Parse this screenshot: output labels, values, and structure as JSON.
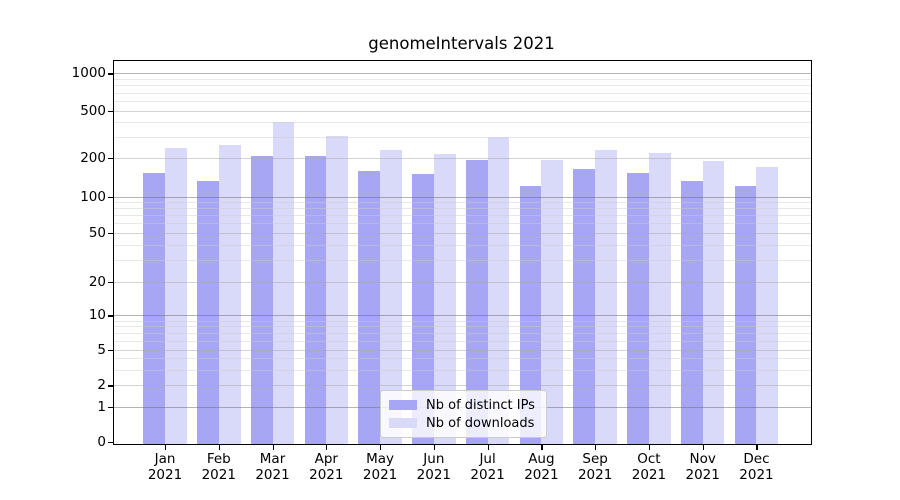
{
  "chart_data": {
    "type": "bar",
    "title": "genomeIntervals 2021",
    "categories": [
      "Jan 2021",
      "Feb 2021",
      "Mar 2021",
      "Apr 2021",
      "May 2021",
      "Jun 2021",
      "Jul 2021",
      "Aug 2021",
      "Sep 2021",
      "Oct 2021",
      "Nov 2021",
      "Dec 2021"
    ],
    "series": [
      {
        "name": "Nb of distinct IPs",
        "color": "#a6a6f4",
        "values": [
          158,
          137,
          214,
          214,
          163,
          155,
          200,
          125,
          170,
          158,
          137,
          125
        ]
      },
      {
        "name": "Nb of downloads",
        "color": "#d9d9f9",
        "values": [
          250,
          265,
          420,
          320,
          240,
          222,
          310,
          198,
          240,
          227,
          197,
          175
        ]
      }
    ],
    "yscale": "asinh",
    "ylim": [
      0,
      1260
    ],
    "y_ticks": [
      0,
      1,
      2,
      5,
      10,
      20,
      50,
      100,
      200,
      500,
      1000
    ],
    "xlabel": "",
    "ylabel": "",
    "grid": true,
    "grid_over_bars": true,
    "legend_position": "lower center"
  },
  "colors": {
    "bar_distinct_ips": "#a6a6f4",
    "bar_downloads": "#d9d9f9",
    "grid_major": "#b5b5b5",
    "grid_semi": "#d6d6d6",
    "grid_minor": "#ebebeb",
    "axis": "#000000",
    "background": "#ffffff"
  }
}
